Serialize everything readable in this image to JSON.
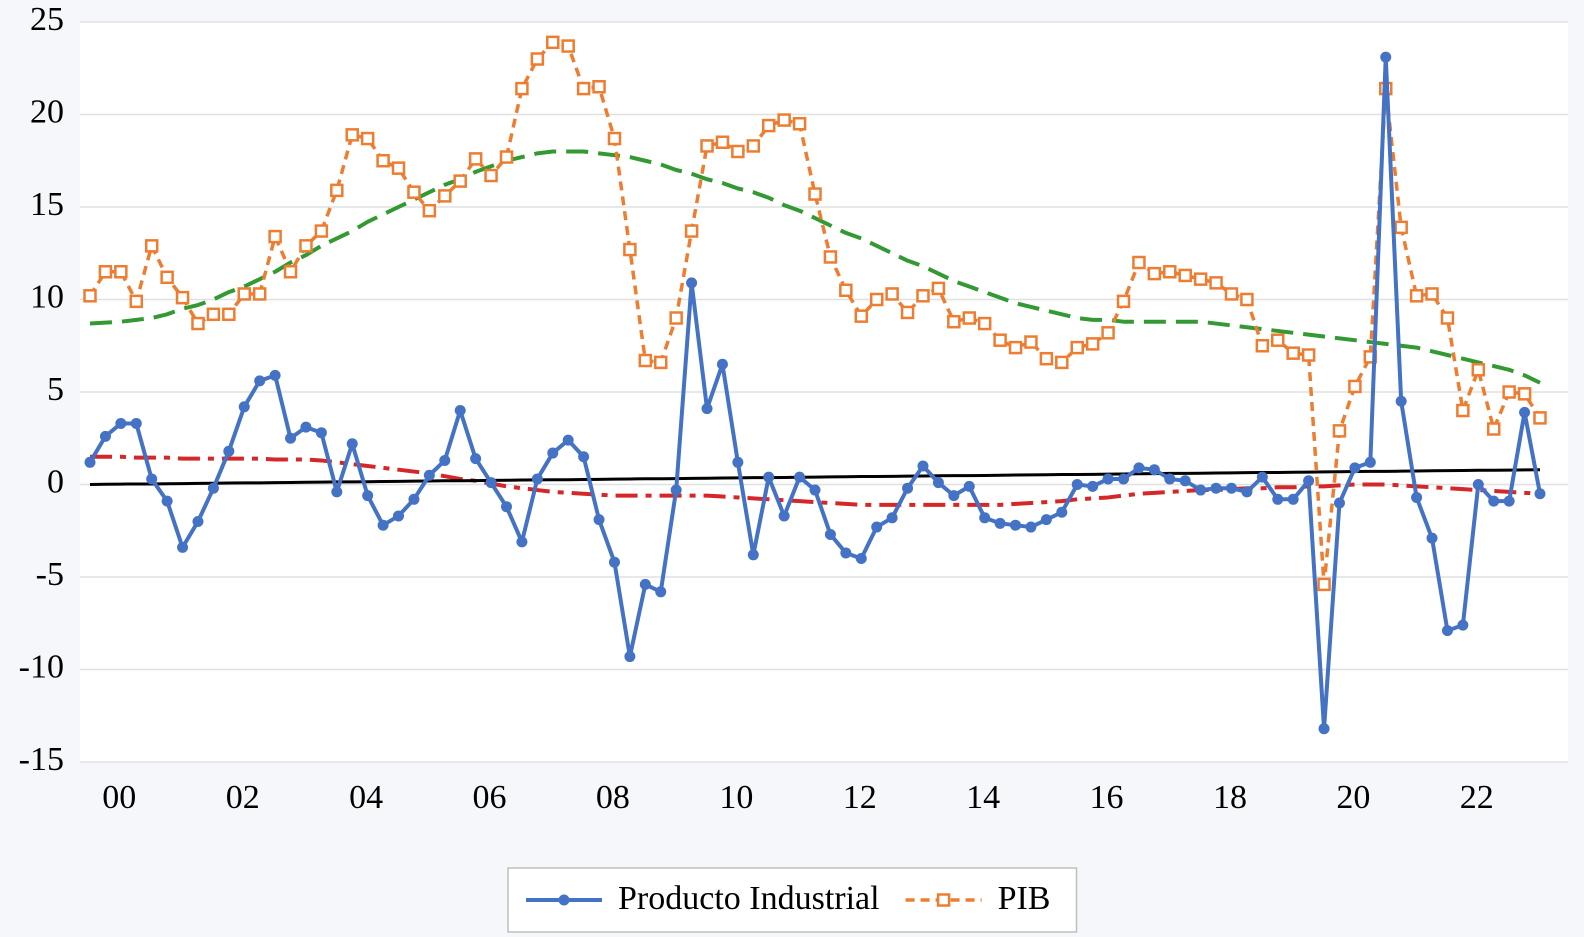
{
  "chart_data": {
    "type": "line",
    "categories": [
      "00",
      null,
      null,
      null,
      null,
      null,
      null,
      null,
      "02",
      null,
      null,
      null,
      null,
      null,
      null,
      null,
      "04",
      null,
      null,
      null,
      null,
      null,
      null,
      null,
      "06",
      null,
      null,
      null,
      null,
      null,
      null,
      null,
      "08",
      null,
      null,
      null,
      null,
      null,
      null,
      null,
      "10",
      null,
      null,
      null,
      null,
      null,
      null,
      null,
      "12",
      null,
      null,
      null,
      null,
      null,
      null,
      null,
      "14",
      null,
      null,
      null,
      null,
      null,
      null,
      null,
      "16",
      null,
      null,
      null,
      null,
      null,
      null,
      null,
      "18",
      null,
      null,
      null,
      null,
      null,
      null,
      null,
      "20",
      null,
      null,
      null,
      null,
      null,
      null,
      null,
      "22",
      null,
      null,
      null,
      null,
      null,
      null
    ],
    "series": [
      {
        "name": "Producto Industrial",
        "color": "#4472c4",
        "marker": "circle",
        "dash": "solid",
        "values": [
          1.2,
          2.6,
          3.3,
          3.3,
          0.3,
          -0.9,
          -3.4,
          -2.0,
          -0.2,
          1.8,
          4.2,
          5.6,
          5.9,
          2.5,
          3.1,
          2.8,
          -0.4,
          2.2,
          -0.6,
          -2.2,
          -1.7,
          -0.8,
          0.5,
          1.3,
          4.0,
          1.4,
          0.1,
          -1.2,
          -3.1,
          0.3,
          1.7,
          2.4,
          1.5,
          -1.9,
          -4.2,
          -9.3,
          -5.4,
          -5.8,
          -0.3,
          10.9,
          4.1,
          6.5,
          1.2,
          -3.8,
          0.4,
          -1.7,
          0.4,
          -0.3,
          -2.7,
          -3.7,
          -4.0,
          -2.3,
          -1.8,
          -0.2,
          1.0,
          0.1,
          -0.6,
          -0.1,
          -1.8,
          -2.1,
          -2.2,
          -2.3,
          -1.9,
          -1.5,
          0.0,
          -0.1,
          0.3,
          0.3,
          0.9,
          0.8,
          0.3,
          0.2,
          -0.3,
          -0.2,
          -0.2,
          -0.4,
          0.4,
          -0.8,
          -0.8,
          0.2,
          -13.2,
          -1.0,
          0.9,
          1.2,
          23.1,
          4.5,
          -0.7,
          -2.9,
          -7.9,
          -7.6,
          0.0,
          -0.9,
          -0.9,
          3.9,
          -0.5
        ]
      },
      {
        "name": "PIB",
        "color": "#ed7d31",
        "marker": "square",
        "dash": "dotted",
        "values": [
          10.2,
          11.5,
          11.5,
          9.9,
          12.9,
          11.2,
          10.1,
          8.7,
          9.2,
          9.2,
          10.3,
          10.3,
          13.4,
          11.5,
          12.9,
          13.7,
          15.9,
          18.9,
          18.7,
          17.5,
          17.1,
          15.8,
          14.8,
          15.6,
          16.4,
          17.6,
          16.7,
          17.7,
          21.4,
          23.0,
          23.9,
          23.7,
          21.4,
          21.5,
          18.7,
          12.7,
          6.7,
          6.6,
          9.0,
          13.7,
          18.3,
          18.5,
          18.0,
          18.3,
          19.4,
          19.7,
          19.5,
          15.7,
          12.3,
          10.5,
          9.1,
          10.0,
          10.3,
          9.3,
          10.2,
          10.6,
          8.8,
          9.0,
          8.7,
          7.8,
          7.4,
          7.7,
          6.8,
          6.6,
          7.4,
          7.6,
          8.2,
          9.9,
          12.0,
          11.4,
          11.5,
          11.3,
          11.1,
          10.9,
          10.3,
          10.0,
          7.5,
          7.8,
          7.1,
          7.0,
          -5.4,
          2.9,
          5.3,
          6.9,
          21.4,
          13.9,
          10.2,
          10.3,
          9.0,
          4.0,
          6.2,
          3.0,
          5.0,
          4.9,
          3.6
        ]
      },
      {
        "color": "#339933",
        "marker": "none",
        "dash": "dashed",
        "values": [
          8.7,
          8.75,
          8.8,
          8.9,
          9.0,
          9.2,
          9.5,
          9.7,
          10.0,
          10.4,
          10.7,
          11.1,
          11.5,
          12.0,
          12.4,
          12.9,
          13.3,
          13.7,
          14.2,
          14.6,
          15.0,
          15.4,
          15.8,
          16.2,
          16.5,
          16.9,
          17.2,
          17.5,
          17.7,
          17.9,
          18.0,
          18.0,
          18.0,
          17.9,
          17.8,
          17.7,
          17.5,
          17.3,
          17.0,
          16.8,
          16.5,
          16.3,
          16.0,
          15.8,
          15.5,
          15.1,
          14.8,
          14.4,
          14.0,
          13.6,
          13.3,
          12.9,
          12.5,
          12.1,
          11.8,
          11.4,
          11.0,
          10.7,
          10.4,
          10.1,
          9.8,
          9.6,
          9.4,
          9.2,
          9.0,
          8.9,
          8.9,
          8.8,
          8.8,
          8.8,
          8.8,
          8.8,
          8.8,
          8.7,
          8.6,
          8.5,
          8.4,
          8.3,
          8.2,
          8.1,
          8.0,
          7.9,
          7.8,
          7.7,
          7.6,
          7.5,
          7.4,
          7.2,
          7.0,
          6.8,
          6.6,
          6.4,
          6.2,
          5.9,
          5.5
        ]
      },
      {
        "color": "#d62728",
        "marker": "none",
        "dash": "dashdot",
        "values": [
          1.5,
          1.5,
          1.5,
          1.45,
          1.45,
          1.45,
          1.4,
          1.4,
          1.4,
          1.4,
          1.4,
          1.4,
          1.35,
          1.35,
          1.35,
          1.3,
          1.2,
          1.1,
          1.0,
          0.9,
          0.8,
          0.7,
          0.6,
          0.45,
          0.3,
          0.2,
          0.05,
          -0.1,
          -0.2,
          -0.3,
          -0.4,
          -0.45,
          -0.5,
          -0.55,
          -0.6,
          -0.6,
          -0.6,
          -0.6,
          -0.6,
          -0.6,
          -0.6,
          -0.65,
          -0.7,
          -0.75,
          -0.8,
          -0.85,
          -0.9,
          -0.95,
          -1.0,
          -1.05,
          -1.1,
          -1.1,
          -1.1,
          -1.1,
          -1.1,
          -1.1,
          -1.1,
          -1.1,
          -1.1,
          -1.1,
          -1.05,
          -1.0,
          -0.95,
          -0.9,
          -0.8,
          -0.75,
          -0.7,
          -0.6,
          -0.5,
          -0.45,
          -0.4,
          -0.35,
          -0.3,
          -0.3,
          -0.25,
          -0.2,
          -0.2,
          -0.15,
          -0.15,
          -0.1,
          -0.1,
          -0.05,
          0.0,
          0.0,
          0.0,
          -0.05,
          -0.1,
          -0.15,
          -0.2,
          -0.25,
          -0.3,
          -0.35,
          -0.4,
          -0.45,
          -0.5
        ]
      },
      {
        "color": "#000000",
        "marker": "none",
        "dash": "solid",
        "values": [
          0,
          0.01,
          0.02,
          0.03,
          0.03,
          0.04,
          0.05,
          0.06,
          0.07,
          0.08,
          0.09,
          0.09,
          0.1,
          0.11,
          0.12,
          0.13,
          0.14,
          0.14,
          0.15,
          0.16,
          0.17,
          0.18,
          0.19,
          0.2,
          0.2,
          0.21,
          0.22,
          0.23,
          0.24,
          0.25,
          0.26,
          0.26,
          0.27,
          0.28,
          0.29,
          0.3,
          0.31,
          0.31,
          0.32,
          0.33,
          0.34,
          0.35,
          0.36,
          0.37,
          0.37,
          0.38,
          0.39,
          0.4,
          0.41,
          0.42,
          0.43,
          0.43,
          0.44,
          0.45,
          0.46,
          0.47,
          0.48,
          0.48,
          0.49,
          0.5,
          0.51,
          0.52,
          0.53,
          0.54,
          0.54,
          0.55,
          0.56,
          0.57,
          0.58,
          0.59,
          0.6,
          0.6,
          0.61,
          0.62,
          0.63,
          0.64,
          0.65,
          0.65,
          0.66,
          0.67,
          0.68,
          0.69,
          0.7,
          0.71,
          0.71,
          0.72,
          0.73,
          0.74,
          0.75,
          0.76,
          0.77,
          0.77,
          0.78,
          0.79,
          0.8
        ]
      }
    ],
    "ylim": [
      -15,
      25
    ],
    "yticks": [
      -15,
      -10,
      -5,
      0,
      5,
      10,
      15,
      20,
      25
    ],
    "grid": true,
    "legend": "bottom"
  }
}
